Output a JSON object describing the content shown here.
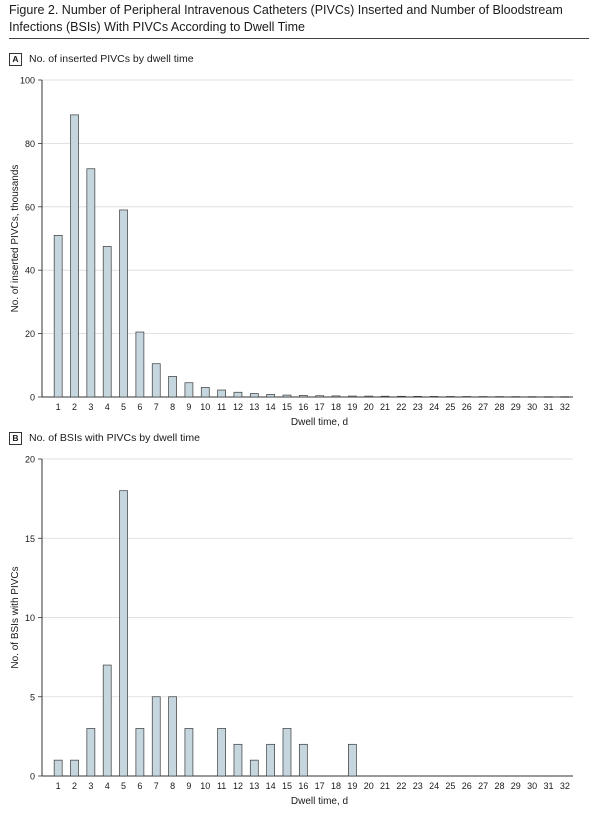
{
  "figure": {
    "title": "Figure 2. Number of Peripheral Intravenous Catheters (PIVCs) Inserted and Number of Bloodstream Infections (BSIs) With PIVCs According to Dwell Time"
  },
  "colors": {
    "bar_fill": "#c5d6df",
    "bar_stroke": "#3a3a3a",
    "grid": "#d9d9d9",
    "axis": "#333333"
  },
  "panels": [
    {
      "letter": "A",
      "label": "No. of inserted PIVCs by dwell time"
    },
    {
      "letter": "B",
      "label": "No. of BSIs with PIVCs by dwell time"
    }
  ],
  "chart_data": [
    {
      "type": "bar",
      "panel": "A",
      "title": "No. of inserted PIVCs by dwell time",
      "xlabel": "Dwell time, d",
      "ylabel": "No. of inserted PIVCs, thousands",
      "ylim": [
        0,
        100
      ],
      "yticks": [
        0,
        20,
        40,
        60,
        80,
        100
      ],
      "grid": true,
      "categories": [
        "1",
        "2",
        "3",
        "4",
        "5",
        "6",
        "7",
        "8",
        "9",
        "10",
        "11",
        "12",
        "13",
        "14",
        "15",
        "16",
        "17",
        "18",
        "19",
        "20",
        "21",
        "22",
        "23",
        "24",
        "25",
        "26",
        "27",
        "28",
        "29",
        "30",
        "31",
        "32"
      ],
      "values": [
        51,
        89,
        72,
        47.5,
        59,
        20.5,
        10.5,
        6.5,
        4.5,
        3,
        2.2,
        1.5,
        1.1,
        0.8,
        0.6,
        0.5,
        0.4,
        0.35,
        0.3,
        0.28,
        0.25,
        0.22,
        0.2,
        0.18,
        0.17,
        0.15,
        0.14,
        0.13,
        0.12,
        0.11,
        0.1,
        0.1
      ]
    },
    {
      "type": "bar",
      "panel": "B",
      "title": "No. of BSIs with PIVCs by dwell time",
      "xlabel": "Dwell time, d",
      "ylabel": "No. of BSIs with PIVCs",
      "ylim": [
        0,
        20
      ],
      "yticks": [
        0,
        5,
        10,
        15,
        20
      ],
      "grid": true,
      "categories": [
        "1",
        "2",
        "3",
        "4",
        "5",
        "6",
        "7",
        "8",
        "9",
        "10",
        "11",
        "12",
        "13",
        "14",
        "15",
        "16",
        "17",
        "18",
        "19",
        "20",
        "21",
        "22",
        "23",
        "24",
        "25",
        "26",
        "27",
        "28",
        "29",
        "30",
        "31",
        "32"
      ],
      "values": [
        1,
        1,
        3,
        7,
        18,
        3,
        5,
        5,
        3,
        0,
        3,
        2,
        1,
        2,
        3,
        2,
        0,
        0,
        2,
        0,
        0,
        0,
        0,
        0,
        0,
        0,
        0,
        0,
        0,
        0,
        0,
        0
      ]
    }
  ]
}
